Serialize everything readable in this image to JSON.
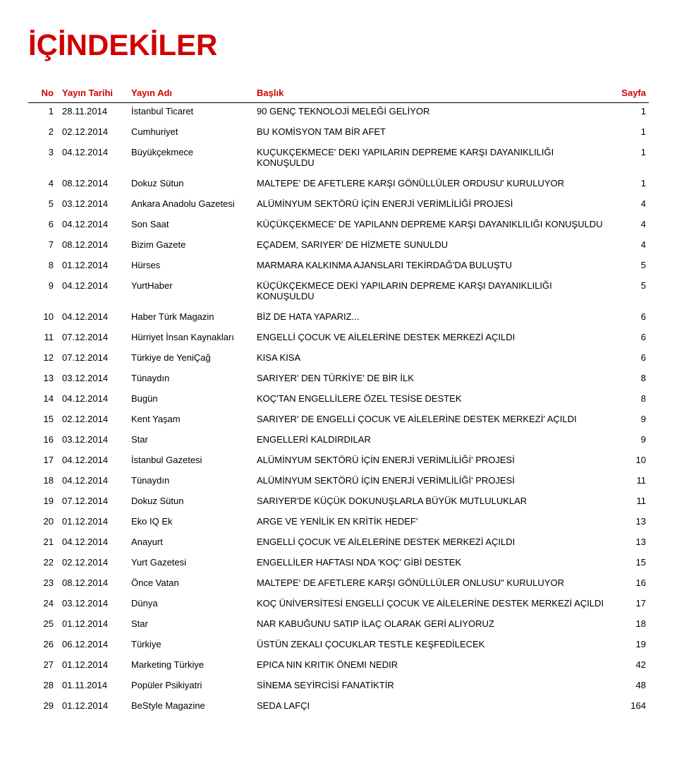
{
  "title": "İÇİNDEKİLER",
  "columns": {
    "no": "No",
    "date": "Yayın Tarihi",
    "pub": "Yayın Adı",
    "headline": "Başlık",
    "page": "Sayfa"
  },
  "rows": [
    {
      "no": "1",
      "date": "28.11.2014",
      "pub": "İstanbul Ticaret",
      "headline": "90 GENÇ TEKNOLOJİ MELEĞİ GELİYOR",
      "page": "1"
    },
    {
      "no": "2",
      "date": "02.12.2014",
      "pub": "Cumhuriyet",
      "headline": "BU KOMİSYON TAM BİR AFET",
      "page": "1"
    },
    {
      "no": "3",
      "date": "04.12.2014",
      "pub": "Büyükçekmece",
      "headline": "KUÇUKÇEKMECE' DEKI YAPILARIN DEPREME KARŞI DAYANIKLILIĞI KONUŞULDU",
      "page": "1"
    },
    {
      "no": "4",
      "date": "08.12.2014",
      "pub": "Dokuz Sütun",
      "headline": "MALTEPE' DE AFETLERE KARŞI GÖNÜLLÜLER ORDUSU' KURULUYOR",
      "page": "1"
    },
    {
      "no": "5",
      "date": "03.12.2014",
      "pub": "Ankara Anadolu Gazetesi",
      "headline": "ALÜMİNYUM SEKTÖRÜ İÇİN ENERJİ VERİMLİLİĞİ PROJESİ",
      "page": "4"
    },
    {
      "no": "6",
      "date": "04.12.2014",
      "pub": "Son Saat",
      "headline": "KÜÇÜKÇEKMECE' DE YAPILANN DEPREME KARŞI DAYANIKLILIĞI KONUŞULDU",
      "page": "4"
    },
    {
      "no": "7",
      "date": "08.12.2014",
      "pub": "Bizim Gazete",
      "headline": "EÇADEM, SARIYER' DE HİZMETE SUNULDU",
      "page": "4"
    },
    {
      "no": "8",
      "date": "01.12.2014",
      "pub": "Hürses",
      "headline": "MARMARA KALKINMA AJANSLARI TEKİRDAĞ'DA BULUŞTU",
      "page": "5"
    },
    {
      "no": "9",
      "date": "04.12.2014",
      "pub": "YurtHaber",
      "headline": "KÜÇÜKÇEKMECE DEKİ YAPILARIN DEPREME KARŞI DAYANIKLILIĞI KONUŞULDU",
      "page": "5"
    },
    {
      "no": "10",
      "date": "04.12.2014",
      "pub": "Haber Türk Magazin",
      "headline": "BİZ DE HATA YAPARIZ...",
      "page": "6"
    },
    {
      "no": "11",
      "date": "07.12.2014",
      "pub": "Hürriyet İnsan Kaynakları",
      "headline": "ENGELLİ ÇOCUK VE AİLELERİNE DESTEK MERKEZİ AÇILDI",
      "page": "6"
    },
    {
      "no": "12",
      "date": "07.12.2014",
      "pub": "Türkiye de YeniÇağ",
      "headline": "KISA KISA",
      "page": "6"
    },
    {
      "no": "13",
      "date": "03.12.2014",
      "pub": "Tünaydın",
      "headline": "SARIYER' DEN TÜRKİYE' DE BİR İLK",
      "page": "8"
    },
    {
      "no": "14",
      "date": "04.12.2014",
      "pub": "Bugün",
      "headline": "KOÇ'TAN ENGELLİLERE ÖZEL TESİSE DESTEK",
      "page": "8"
    },
    {
      "no": "15",
      "date": "02.12.2014",
      "pub": "Kent Yaşam",
      "headline": "SARIYER' DE ENGELLİ ÇOCUK VE AİLELERİNE DESTEK MERKEZİ' AÇILDI",
      "page": "9"
    },
    {
      "no": "16",
      "date": "03.12.2014",
      "pub": "Star",
      "headline": "ENGELLERİ KALDIRDILAR",
      "page": "9"
    },
    {
      "no": "17",
      "date": "04.12.2014",
      "pub": "İstanbul Gazetesi",
      "headline": "ALÜMİNYUM SEKTÖRÜ İÇİN ENERJİ VERİMLİLİĞİ' PROJESİ",
      "page": "10"
    },
    {
      "no": "18",
      "date": "04.12.2014",
      "pub": "Tünaydın",
      "headline": "ALÜMİNYUM SEKTÖRÜ İÇİN ENERJİ VERİMLİLİĞİ' PROJESİ",
      "page": "11"
    },
    {
      "no": "19",
      "date": "07.12.2014",
      "pub": "Dokuz Sütun",
      "headline": "SARIYER'DE KÜÇÜK DOKUNUŞLARLA BÜYÜK MUTLULUKLAR",
      "page": "11"
    },
    {
      "no": "20",
      "date": "01.12.2014",
      "pub": "Eko IQ Ek",
      "headline": "ARGE VE YENİLİK EN KRİTİK HEDEF'",
      "page": "13"
    },
    {
      "no": "21",
      "date": "04.12.2014",
      "pub": "Anayurt",
      "headline": "ENGELLİ ÇOCUK VE AİLELERİNE DESTEK MERKEZİ AÇILDI",
      "page": "13"
    },
    {
      "no": "22",
      "date": "02.12.2014",
      "pub": "Yurt Gazetesi",
      "headline": "ENGELLİLER HAFTASI NDA 'KOÇ' GİBİ DESTEK",
      "page": "15"
    },
    {
      "no": "23",
      "date": "08.12.2014",
      "pub": "Önce Vatan",
      "headline": "MALTEPE' DE AFETLERE KARŞI GÖNÜLLÜLER ONLUSU\" KURULUYOR",
      "page": "16"
    },
    {
      "no": "24",
      "date": "03.12.2014",
      "pub": "Dünya",
      "headline": "KOÇ ÜNİVERSİTESİ ENGELLİ ÇOCUK VE AİLELERİNE DESTEK MERKEZİ AÇILDI",
      "page": "17"
    },
    {
      "no": "25",
      "date": "01.12.2014",
      "pub": "Star",
      "headline": "NAR KABUĞUNU SATIP İLAÇ OLARAK GERİ ALIYORUZ",
      "page": "18"
    },
    {
      "no": "26",
      "date": "06.12.2014",
      "pub": "Türkiye",
      "headline": "ÜSTÜN ZEKALI ÇOCUKLAR TESTLE KEŞFEDİLECEK",
      "page": "19"
    },
    {
      "no": "27",
      "date": "01.12.2014",
      "pub": "Marketing Türkiye",
      "headline": "EPICA NIN KRITIK ÖNEMI NEDIR",
      "page": "42"
    },
    {
      "no": "28",
      "date": "01.11.2014",
      "pub": "Popüler Psikiyatri",
      "headline": "SİNEMA SEYİRCİSİ FANATİKTİR",
      "page": "48"
    },
    {
      "no": "29",
      "date": "01.12.2014",
      "pub": "BeStyle Magazine",
      "headline": "SEDA LAFÇI",
      "page": "164"
    }
  ],
  "colors": {
    "accent": "#d00000",
    "text": "#000000",
    "bg": "#ffffff"
  }
}
